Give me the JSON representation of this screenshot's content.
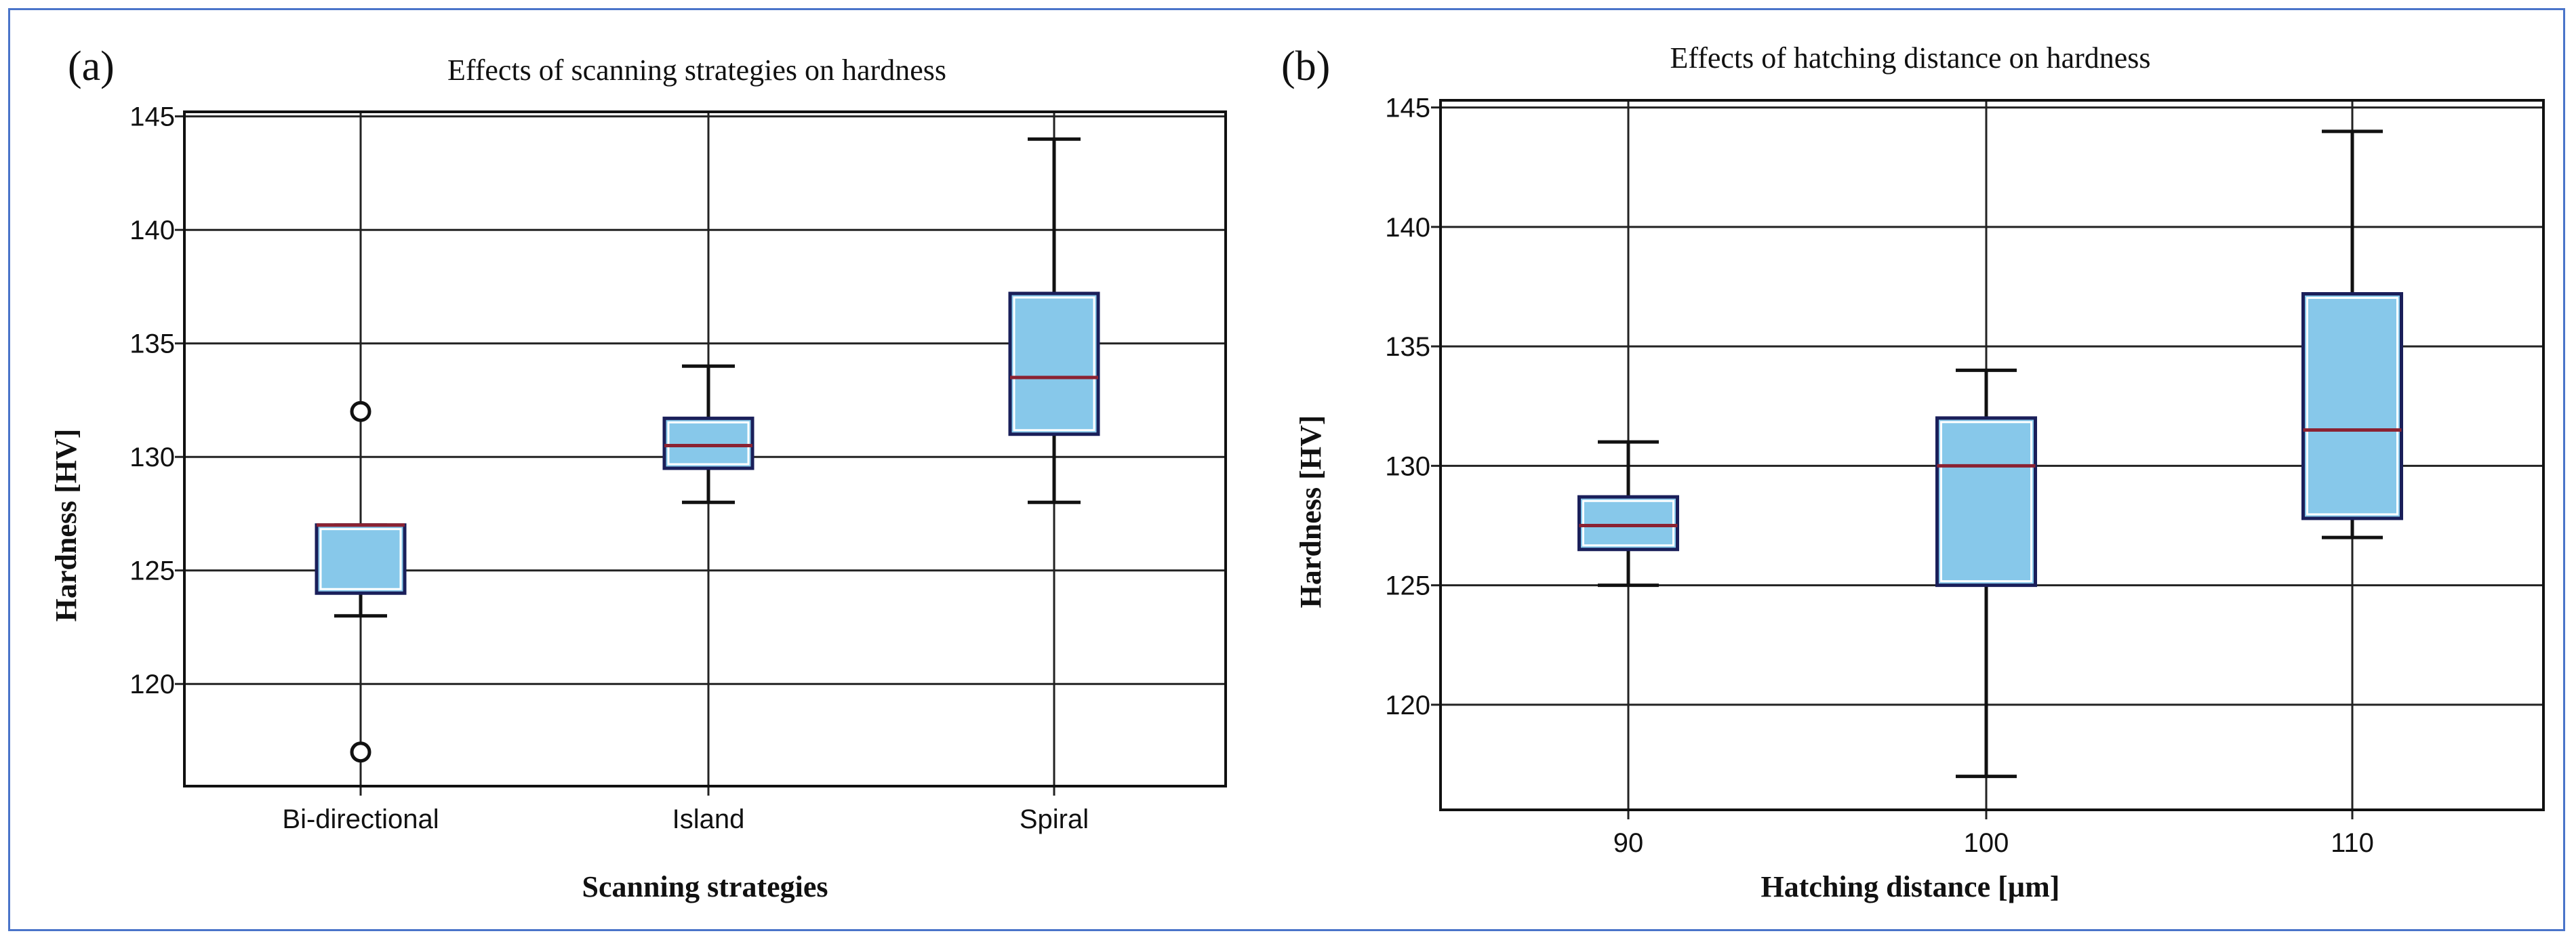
{
  "colors": {
    "frame": "#4a74c9",
    "box_fill": "#87c8ea",
    "box_edge": "#1a1f5a",
    "median": "#8b2232",
    "grid": "#222222"
  },
  "chart_data": [
    {
      "type": "box",
      "panel_label": "(a)",
      "title": "Effects of scanning strategies on hardness",
      "xlabel": "Scanning strategies",
      "ylabel": "Hardness [HV]",
      "ylim": [
        115.5,
        145.2
      ],
      "yticks": [
        120,
        125,
        130,
        135,
        140,
        145
      ],
      "categories": [
        "Bi-directional",
        "Island",
        "Spiral"
      ],
      "boxes": [
        {
          "name": "Bi-directional",
          "whisker_low": 123,
          "q1": 124,
          "median": 127,
          "q3": 127,
          "whisker_high": 127,
          "outliers": [
            132,
            117
          ]
        },
        {
          "name": "Island",
          "whisker_low": 128,
          "q1": 129.5,
          "median": 130.5,
          "q3": 131.7,
          "whisker_high": 134,
          "outliers": []
        },
        {
          "name": "Spiral",
          "whisker_low": 128,
          "q1": 131,
          "median": 133.5,
          "q3": 137.2,
          "whisker_high": 144,
          "outliers": []
        }
      ]
    },
    {
      "type": "box",
      "panel_label": "(b)",
      "title": "Effects of hatching distance on hardness",
      "xlabel": "Hatching distance [µm]",
      "ylabel": "Hardness [HV]",
      "ylim": [
        115.6,
        145.3
      ],
      "yticks": [
        120,
        125,
        130,
        135,
        140,
        145
      ],
      "categories": [
        "90",
        "100",
        "110"
      ],
      "boxes": [
        {
          "name": "90",
          "whisker_low": 125,
          "q1": 126.5,
          "median": 127.5,
          "q3": 128.7,
          "whisker_high": 131,
          "outliers": []
        },
        {
          "name": "100",
          "whisker_low": 117,
          "q1": 125,
          "median": 130,
          "q3": 132,
          "whisker_high": 134,
          "outliers": []
        },
        {
          "name": "110",
          "whisker_low": 127,
          "q1": 127.8,
          "median": 131.5,
          "q3": 137.2,
          "whisker_high": 144,
          "outliers": []
        }
      ]
    }
  ]
}
